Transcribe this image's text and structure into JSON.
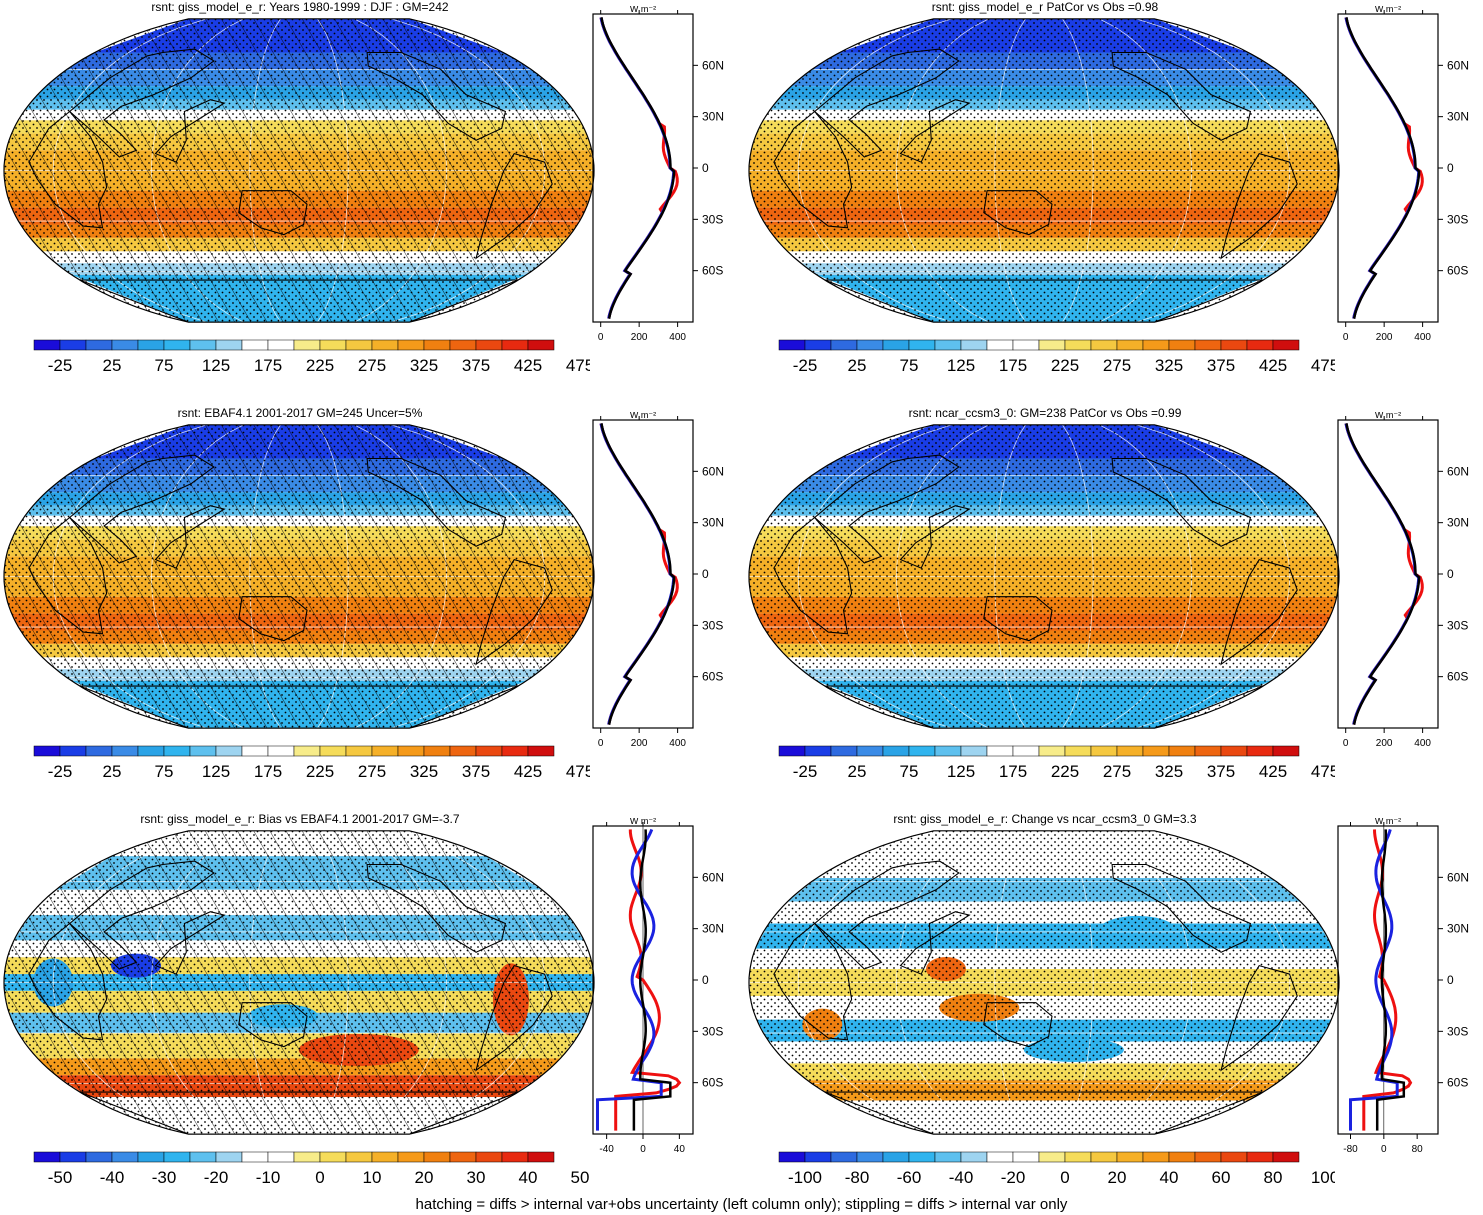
{
  "palette": [
    "#1a0cd9",
    "#1a3de6",
    "#2e6ae0",
    "#3a8be6",
    "#2aa3e6",
    "#30b4ee",
    "#5ec0ee",
    "#9ed4f0",
    "#ffffff",
    "#ffffff",
    "#f7ec8a",
    "#f5dc5a",
    "#f5c840",
    "#f5b028",
    "#f59a1a",
    "#f08010",
    "#ee6510",
    "#ea4810",
    "#e82a10",
    "#d00e0e"
  ],
  "footer": "hatching = diffs > internal var+obs uncertainty (left column only); stippling = diffs > internal var only",
  "panels": [
    {
      "title": "rsnt: giss_model_e_r: Years 1980-1999 : DJF : GM=242",
      "kind": "abs",
      "hatch": true,
      "stipple": true,
      "cbar_labels": [
        "-25",
        "25",
        "75",
        "125",
        "175",
        "225",
        "275",
        "325",
        "375",
        "425",
        "475"
      ],
      "profile": {
        "unit": "W m⁻²",
        "xlim": [
          -40,
          480
        ],
        "xticks": [
          0,
          200,
          400
        ],
        "xtick_labels": [
          "0",
          "200",
          "400"
        ],
        "zero_line": false
      },
      "lat_labels": [
        "60N",
        "30N",
        "0",
        "30S",
        "60S"
      ]
    },
    {
      "title": "rsnt: giss_model_e_r PatCor vs Obs =0.98",
      "kind": "abs",
      "hatch": false,
      "stipple": true,
      "cbar_labels": [
        "-25",
        "25",
        "75",
        "125",
        "175",
        "225",
        "275",
        "325",
        "375",
        "425",
        "475"
      ],
      "profile": {
        "unit": "W m⁻²",
        "xlim": [
          -40,
          480
        ],
        "xticks": [
          0,
          200,
          400
        ],
        "xtick_labels": [
          "0",
          "200",
          "400"
        ],
        "zero_line": false
      },
      "lat_labels": [
        "60N",
        "30N",
        "0",
        "30S",
        "60S"
      ]
    },
    {
      "title": "rsnt: EBAF4.1 2001-2017 GM=245 Uncer=5%",
      "kind": "abs",
      "hatch": true,
      "stipple": true,
      "cbar_labels": [
        "-25",
        "25",
        "75",
        "125",
        "175",
        "225",
        "275",
        "325",
        "375",
        "425",
        "475"
      ],
      "profile": {
        "unit": "W m⁻²",
        "xlim": [
          -40,
          480
        ],
        "xticks": [
          0,
          200,
          400
        ],
        "xtick_labels": [
          "0",
          "200",
          "400"
        ],
        "zero_line": false
      },
      "lat_labels": [
        "60N",
        "30N",
        "0",
        "30S",
        "60S"
      ]
    },
    {
      "title": "rsnt: ncar_ccsm3_0: GM=238 PatCor vs Obs =0.99",
      "kind": "abs",
      "hatch": false,
      "stipple": true,
      "cbar_labels": [
        "-25",
        "25",
        "75",
        "125",
        "175",
        "225",
        "275",
        "325",
        "375",
        "425",
        "475"
      ],
      "profile": {
        "unit": "W m⁻²",
        "xlim": [
          -40,
          480
        ],
        "xticks": [
          0,
          200,
          400
        ],
        "xtick_labels": [
          "0",
          "200",
          "400"
        ],
        "zero_line": false
      },
      "lat_labels": [
        "60N",
        "30N",
        "0",
        "30S",
        "60S"
      ]
    },
    {
      "title": "rsnt: giss_model_e_r: Bias vs EBAF4.1 2001-2017 GM=-3.7",
      "kind": "bias",
      "hatch": true,
      "stipple": true,
      "cbar_labels": [
        "-50",
        "-40",
        "-30",
        "-20",
        "-10",
        "0",
        "10",
        "20",
        "30",
        "40",
        "50"
      ],
      "profile": {
        "unit": "W m⁻²",
        "xlim": [
          -55,
          55
        ],
        "xticks": [
          -40,
          0,
          40
        ],
        "xtick_labels": [
          "-40",
          "0",
          "40"
        ],
        "zero_line": true
      },
      "lat_labels": [
        "60N",
        "30N",
        "0",
        "30S",
        "60S"
      ]
    },
    {
      "title": "rsnt: giss_model_e_r: Change vs ncar_ccsm3_0 GM=3.3",
      "kind": "change",
      "hatch": false,
      "stipple": true,
      "cbar_labels": [
        "-100",
        "-80",
        "-60",
        "-40",
        "-20",
        "0",
        "20",
        "40",
        "60",
        "80",
        "100"
      ],
      "profile": {
        "unit": "W m⁻²",
        "xlim": [
          -110,
          130
        ],
        "xticks": [
          -80,
          0,
          80
        ],
        "xtick_labels": [
          "-80",
          "0",
          "80"
        ],
        "zero_line": true
      },
      "lat_labels": [
        "60N",
        "30N",
        "0",
        "30S",
        "60S"
      ]
    }
  ]
}
